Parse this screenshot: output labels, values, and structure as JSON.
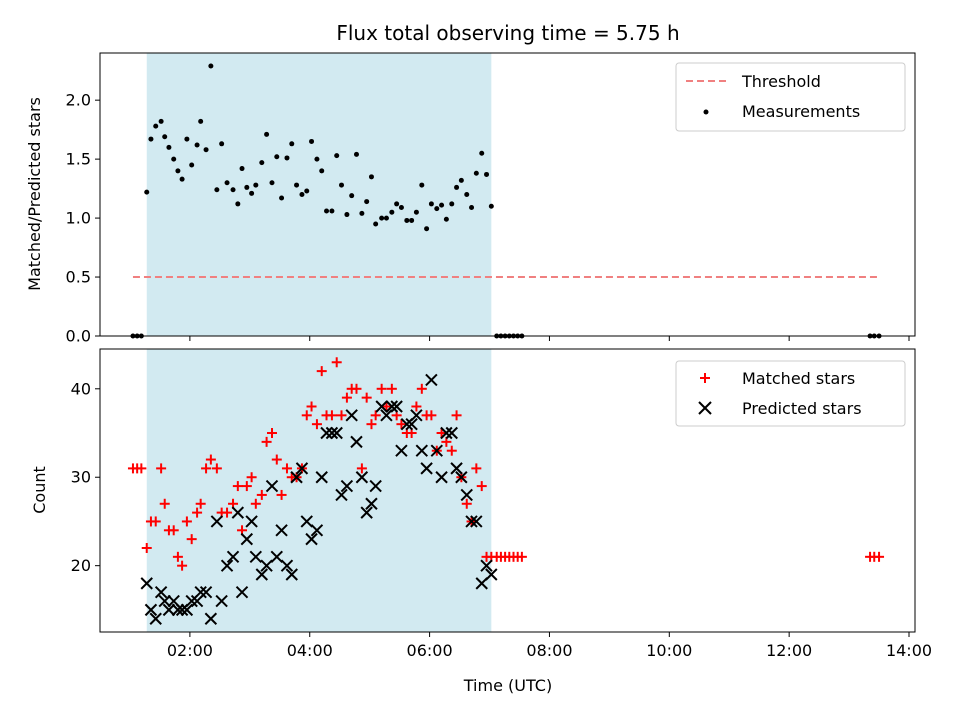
{
  "chart_data": {
    "type": "scatter",
    "title": "Flux total observing time = 5.75 h",
    "xlabel": "Time (UTC)",
    "xlim": [
      0.5,
      14.1
    ],
    "xticks": [
      {
        "v": 2,
        "label": "02:00"
      },
      {
        "v": 4,
        "label": "04:00"
      },
      {
        "v": 6,
        "label": "06:00"
      },
      {
        "v": 8,
        "label": "08:00"
      },
      {
        "v": 10,
        "label": "10:00"
      },
      {
        "v": 12,
        "label": "12:00"
      },
      {
        "v": 14,
        "label": "14:00"
      }
    ],
    "observing_window": [
      1.28,
      7.03
    ],
    "shade_color": "#add8e6",
    "panels": [
      {
        "id": "ratio",
        "ylabel": "Matched/Predicted stars",
        "ylim": [
          0,
          2.4
        ],
        "yticks": [
          {
            "v": 0,
            "label": "0.0"
          },
          {
            "v": 0.5,
            "label": "0.5"
          },
          {
            "v": 1.0,
            "label": "1.0"
          },
          {
            "v": 1.5,
            "label": "1.5"
          },
          {
            "v": 2.0,
            "label": "2.0"
          }
        ],
        "threshold": {
          "name": "Threshold",
          "y": 0.5,
          "x": [
            1.05,
            13.5
          ],
          "color": "#f08080"
        },
        "series": [
          {
            "name": "Measurements",
            "marker": "dot",
            "color": "#000000",
            "x": [
              1.05,
              1.12,
              1.19,
              1.28,
              1.35,
              1.43,
              1.52,
              1.58,
              1.65,
              1.73,
              1.8,
              1.87,
              1.95,
              2.03,
              2.12,
              2.18,
              2.27,
              2.35,
              2.45,
              2.53,
              2.62,
              2.72,
              2.8,
              2.87,
              2.95,
              3.03,
              3.1,
              3.2,
              3.28,
              3.37,
              3.45,
              3.53,
              3.62,
              3.7,
              3.78,
              3.87,
              3.95,
              4.03,
              4.12,
              4.2,
              4.28,
              4.37,
              4.45,
              4.53,
              4.62,
              4.7,
              4.78,
              4.87,
              4.95,
              5.03,
              5.1,
              5.2,
              5.28,
              5.37,
              5.45,
              5.53,
              5.62,
              5.7,
              5.78,
              5.87,
              5.95,
              6.03,
              6.12,
              6.2,
              6.28,
              6.37,
              6.45,
              6.53,
              6.62,
              6.7,
              6.78,
              6.87,
              6.95,
              7.03,
              7.12,
              7.19,
              7.26,
              7.33,
              7.4,
              7.47,
              7.54,
              13.35,
              13.42,
              13.5
            ],
            "y": [
              0,
              0,
              0,
              1.22,
              1.67,
              1.78,
              1.82,
              1.69,
              1.6,
              1.5,
              1.4,
              1.33,
              1.67,
              1.45,
              1.62,
              1.82,
              1.58,
              2.29,
              1.24,
              1.63,
              1.3,
              1.24,
              1.12,
              1.42,
              1.26,
              1.21,
              1.28,
              1.47,
              1.71,
              1.3,
              1.52,
              1.17,
              1.51,
              1.63,
              1.28,
              1.2,
              1.23,
              1.65,
              1.5,
              1.4,
              1.06,
              1.06,
              1.53,
              1.28,
              1.03,
              1.19,
              1.54,
              1.04,
              1.14,
              1.35,
              0.95,
              1.0,
              1.0,
              1.05,
              1.12,
              1.09,
              0.98,
              0.98,
              1.05,
              1.28,
              0.91,
              1.12,
              1.08,
              1.11,
              0.99,
              1.12,
              1.26,
              1.32,
              1.2,
              1.09,
              1.38,
              1.55,
              1.37,
              1.1,
              0,
              0,
              0,
              0,
              0,
              0,
              0,
              0,
              0,
              0
            ]
          }
        ],
        "legend": "top-right"
      },
      {
        "id": "count",
        "ylabel": "Count",
        "ylim": [
          12.5,
          44.5
        ],
        "yticks": [
          {
            "v": 20,
            "label": "20"
          },
          {
            "v": 30,
            "label": "30"
          },
          {
            "v": 40,
            "label": "40"
          }
        ],
        "series": [
          {
            "name": "Matched stars",
            "marker": "plus",
            "color": "#ff0000",
            "x": [
              1.05,
              1.12,
              1.19,
              1.28,
              1.35,
              1.43,
              1.52,
              1.58,
              1.65,
              1.73,
              1.8,
              1.87,
              1.95,
              2.03,
              2.12,
              2.18,
              2.27,
              2.35,
              2.45,
              2.53,
              2.62,
              2.72,
              2.8,
              2.87,
              2.95,
              3.03,
              3.1,
              3.2,
              3.28,
              3.37,
              3.45,
              3.53,
              3.62,
              3.7,
              3.78,
              3.87,
              3.95,
              4.03,
              4.12,
              4.2,
              4.28,
              4.37,
              4.45,
              4.53,
              4.62,
              4.7,
              4.78,
              4.87,
              4.95,
              5.03,
              5.1,
              5.2,
              5.28,
              5.37,
              5.45,
              5.53,
              5.62,
              5.7,
              5.78,
              5.87,
              5.95,
              6.03,
              6.12,
              6.2,
              6.28,
              6.37,
              6.45,
              6.53,
              6.62,
              6.7,
              6.78,
              6.87,
              6.95,
              7.03,
              7.12,
              7.19,
              7.26,
              7.33,
              7.4,
              7.47,
              7.54,
              13.35,
              13.42,
              13.5
            ],
            "y": [
              31,
              31,
              31,
              22,
              25,
              25,
              31,
              27,
              24,
              24,
              21,
              20,
              25,
              23,
              26,
              27,
              31,
              32,
              31,
              26,
              26,
              27,
              29,
              24,
              29,
              30,
              27,
              28,
              34,
              35,
              32,
              28,
              31,
              30,
              30,
              31,
              37,
              38,
              36,
              42,
              37,
              37,
              43,
              37,
              39,
              40,
              40,
              31,
              39,
              36,
              37,
              40,
              38,
              40,
              37,
              36,
              35,
              35,
              38,
              40,
              37,
              37,
              33,
              35,
              34,
              33,
              37,
              30,
              27,
              25,
              31,
              29,
              21,
              21,
              21,
              21,
              21,
              21,
              21,
              21,
              21,
              21,
              21,
              21
            ],
            "legend_hidden": false
          },
          {
            "name": "Predicted stars",
            "marker": "x",
            "color": "#000000",
            "x": [
              1.28,
              1.35,
              1.43,
              1.52,
              1.58,
              1.65,
              1.73,
              1.8,
              1.87,
              1.95,
              2.03,
              2.12,
              2.18,
              2.27,
              2.35,
              2.45,
              2.53,
              2.62,
              2.72,
              2.8,
              2.87,
              2.95,
              3.03,
              3.1,
              3.2,
              3.28,
              3.37,
              3.45,
              3.53,
              3.62,
              3.7,
              3.78,
              3.87,
              3.95,
              4.03,
              4.12,
              4.2,
              4.28,
              4.37,
              4.45,
              4.53,
              4.62,
              4.7,
              4.78,
              4.87,
              4.95,
              5.03,
              5.1,
              5.2,
              5.28,
              5.37,
              5.45,
              5.53,
              5.62,
              5.7,
              5.78,
              5.87,
              5.95,
              6.03,
              6.12,
              6.2,
              6.28,
              6.37,
              6.45,
              6.53,
              6.62,
              6.7,
              6.78,
              6.87,
              6.95,
              7.03
            ],
            "y": [
              18,
              15,
              14,
              17,
              16,
              15,
              16,
              15,
              15,
              15,
              16,
              16,
              17,
              17,
              14,
              25,
              16,
              20,
              21,
              26,
              17,
              23,
              25,
              21,
              19,
              20,
              29,
              21,
              24,
              20,
              19,
              30,
              31,
              25,
              23,
              24,
              30,
              35,
              35,
              35,
              28,
              29,
              37,
              34,
              30,
              26,
              27,
              29,
              38,
              37,
              38,
              38,
              33,
              36,
              36,
              37,
              33,
              31,
              41,
              33,
              30,
              35,
              35,
              31,
              30,
              28,
              25,
              25,
              18,
              20,
              19
            ]
          }
        ],
        "legend": "top-right"
      }
    ]
  }
}
